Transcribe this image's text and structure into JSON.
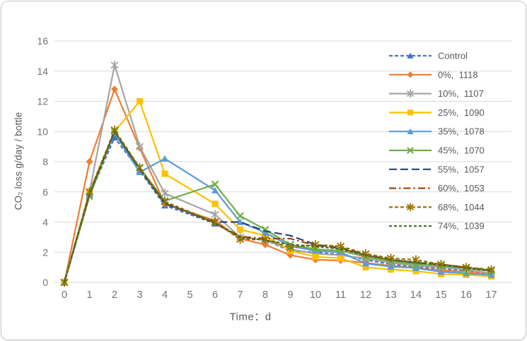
{
  "chart_data": {
    "type": "line",
    "x_axis": {
      "title": "Time：d",
      "ticks": [
        0,
        1,
        2,
        3,
        4,
        5,
        6,
        7,
        8,
        9,
        10,
        11,
        12,
        13,
        14,
        15,
        16,
        17
      ],
      "min": 0,
      "max": 17
    },
    "y_axis": {
      "title": "CO₂ loss g/day / bottle",
      "ticks": [
        0,
        2,
        4,
        6,
        8,
        10,
        12,
        14,
        16
      ],
      "min": 0,
      "max": 16
    },
    "grid": "horizontal",
    "legend_position": "right-overlay",
    "x_values": [
      0,
      1,
      2,
      3,
      4,
      6,
      7,
      8,
      9,
      10,
      11,
      12,
      13,
      14,
      15,
      16,
      17
    ],
    "series": [
      {
        "name": "Control",
        "slug": "control",
        "color": "#4472C4",
        "line_style": "dashed",
        "marker": "triangle",
        "values": [
          0,
          5.8,
          9.6,
          7.4,
          5.1,
          3.9,
          3.0,
          2.8,
          2.1,
          2.0,
          1.85,
          1.5,
          1.2,
          1.05,
          0.9,
          0.8,
          0.55
        ]
      },
      {
        "name": "0%,  1118",
        "slug": "0-1118",
        "color": "#ED7D31",
        "line_style": "solid",
        "marker": "diamond",
        "values": [
          0,
          8.0,
          12.8,
          8.9,
          5.2,
          4.1,
          2.9,
          2.5,
          1.8,
          1.5,
          1.45,
          1.3,
          1.1,
          0.95,
          0.8,
          0.7,
          0.5
        ]
      },
      {
        "name": "10%,  1107",
        "slug": "10-1107",
        "color": "#A5A5A5",
        "line_style": "solid",
        "marker": "asterisk",
        "values": [
          0,
          6.0,
          14.4,
          9.0,
          5.9,
          4.5,
          3.0,
          2.8,
          2.2,
          1.9,
          1.8,
          1.6,
          1.3,
          1.1,
          1.0,
          0.85,
          0.6
        ]
      },
      {
        "name": "25%,  1090",
        "slug": "25-1090",
        "color": "#FFC000",
        "line_style": "solid",
        "marker": "square",
        "values": [
          0,
          6.0,
          10.0,
          12.0,
          7.2,
          5.2,
          3.5,
          3.1,
          2.1,
          1.7,
          1.6,
          1.0,
          0.85,
          0.75,
          0.55,
          0.5,
          0.4
        ]
      },
      {
        "name": "35%,  1078",
        "slug": "35-1078",
        "color": "#5B9BD5",
        "line_style": "solid",
        "marker": "triangle",
        "values": [
          0,
          5.9,
          9.9,
          7.3,
          8.2,
          6.1,
          4.0,
          3.3,
          2.4,
          2.1,
          2.0,
          1.25,
          1.05,
          0.95,
          0.7,
          0.6,
          0.5
        ]
      },
      {
        "name": "45%,  1070",
        "slug": "45-1070",
        "color": "#70AD47",
        "line_style": "solid",
        "marker": "x",
        "values": [
          0,
          5.7,
          10.0,
          7.6,
          5.4,
          6.5,
          4.4,
          3.5,
          2.5,
          2.2,
          2.1,
          1.7,
          1.4,
          1.2,
          1.1,
          0.95,
          0.75
        ]
      },
      {
        "name": "55%,  1057",
        "slug": "55-1057",
        "color": "#264478",
        "line_style": "long-dash",
        "marker": "none",
        "values": [
          0,
          5.9,
          10.0,
          7.5,
          5.2,
          4.0,
          4.0,
          3.4,
          3.1,
          2.5,
          2.3,
          1.85,
          1.5,
          1.3,
          1.2,
          1.0,
          0.8
        ]
      },
      {
        "name": "60%,  1053",
        "slug": "60-1053",
        "color": "#9E480E",
        "line_style": "dash-dot",
        "marker": "none",
        "values": [
          0,
          5.9,
          10.0,
          7.5,
          5.25,
          3.95,
          3.05,
          2.9,
          2.9,
          2.45,
          2.25,
          1.8,
          1.5,
          1.3,
          1.2,
          1.0,
          0.78
        ]
      },
      {
        "name": "68%,  1044",
        "slug": "68-1044",
        "color": "#997300",
        "line_style": "dashed",
        "marker": "asterisk",
        "values": [
          0,
          6.0,
          10.1,
          7.6,
          5.35,
          4.0,
          2.85,
          2.85,
          2.3,
          2.5,
          2.4,
          1.9,
          1.6,
          1.5,
          1.2,
          1.0,
          0.85
        ]
      },
      {
        "name": "74%,  1039",
        "slug": "74-1039",
        "color": "#43682B",
        "line_style": "short-dash",
        "marker": "none",
        "values": [
          0,
          5.8,
          10.0,
          7.5,
          5.3,
          3.9,
          3.0,
          2.8,
          2.5,
          2.4,
          2.2,
          1.8,
          1.5,
          1.35,
          1.15,
          0.95,
          0.75
        ]
      }
    ],
    "colors": {
      "gridline": "#d9d9d9",
      "tick_label": "#737373",
      "axis_title": "#595959",
      "legend_text": "#595959",
      "panel_border": "#c9c9c9",
      "background": "#ffffff"
    }
  }
}
